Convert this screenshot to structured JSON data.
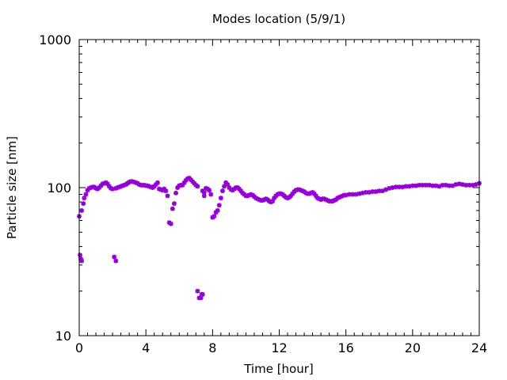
{
  "chart_data": {
    "type": "scatter",
    "title": "Modes location (5/9/1)",
    "xlabel": "Time [hour]",
    "ylabel": "Particle size [nm]",
    "xlim": [
      0,
      24
    ],
    "ylim": [
      10,
      1000
    ],
    "yscale": "log",
    "xticks": [
      0,
      4,
      8,
      12,
      16,
      20,
      24
    ],
    "xtick_labels": [
      "0",
      "4",
      "8",
      "12",
      "16",
      "20",
      "24"
    ],
    "yticks": [
      10,
      100,
      1000
    ],
    "ytick_labels": [
      "10",
      "100",
      "1000"
    ],
    "grid": false,
    "marker": "star",
    "color": "#9400D3",
    "points": [
      [
        0.0,
        64
      ],
      [
        0.05,
        35
      ],
      [
        0.1,
        33
      ],
      [
        0.15,
        32
      ],
      [
        0.15,
        70
      ],
      [
        0.25,
        78
      ],
      [
        0.3,
        85
      ],
      [
        0.4,
        90
      ],
      [
        0.5,
        96
      ],
      [
        0.6,
        99
      ],
      [
        0.7,
        100
      ],
      [
        0.8,
        101
      ],
      [
        0.9,
        101
      ],
      [
        1.0,
        99
      ],
      [
        1.1,
        98
      ],
      [
        1.2,
        100
      ],
      [
        1.3,
        103
      ],
      [
        1.4,
        106
      ],
      [
        1.5,
        107
      ],
      [
        1.6,
        108
      ],
      [
        1.7,
        106
      ],
      [
        1.8,
        102
      ],
      [
        1.9,
        99
      ],
      [
        2.0,
        98
      ],
      [
        2.1,
        34
      ],
      [
        2.2,
        32
      ],
      [
        2.2,
        99
      ],
      [
        2.3,
        100
      ],
      [
        2.4,
        101
      ],
      [
        2.5,
        102
      ],
      [
        2.6,
        103
      ],
      [
        2.7,
        104
      ],
      [
        2.8,
        105
      ],
      [
        2.9,
        107
      ],
      [
        3.0,
        109
      ],
      [
        3.1,
        110
      ],
      [
        3.2,
        110
      ],
      [
        3.3,
        109
      ],
      [
        3.4,
        108
      ],
      [
        3.5,
        107
      ],
      [
        3.6,
        105
      ],
      [
        3.7,
        104
      ],
      [
        3.8,
        104
      ],
      [
        3.9,
        104
      ],
      [
        4.0,
        103
      ],
      [
        4.1,
        103
      ],
      [
        4.2,
        102
      ],
      [
        4.3,
        101
      ],
      [
        4.4,
        100
      ],
      [
        4.5,
        102
      ],
      [
        4.6,
        105
      ],
      [
        4.7,
        108
      ],
      [
        4.8,
        98
      ],
      [
        4.9,
        97
      ],
      [
        5.0,
        96
      ],
      [
        5.1,
        98
      ],
      [
        5.2,
        95
      ],
      [
        5.3,
        88
      ],
      [
        5.4,
        58
      ],
      [
        5.5,
        57
      ],
      [
        5.6,
        72
      ],
      [
        5.7,
        78
      ],
      [
        5.8,
        92
      ],
      [
        5.9,
        100
      ],
      [
        6.0,
        103
      ],
      [
        6.1,
        104
      ],
      [
        6.2,
        104
      ],
      [
        6.3,
        108
      ],
      [
        6.4,
        112
      ],
      [
        6.5,
        115
      ],
      [
        6.6,
        116
      ],
      [
        6.7,
        113
      ],
      [
        6.8,
        110
      ],
      [
        6.9,
        107
      ],
      [
        7.0,
        104
      ],
      [
        7.1,
        102
      ],
      [
        7.1,
        20
      ],
      [
        7.2,
        18
      ],
      [
        7.3,
        18
      ],
      [
        7.35,
        19
      ],
      [
        7.4,
        19
      ],
      [
        7.4,
        95
      ],
      [
        7.5,
        93
      ],
      [
        7.5,
        88
      ],
      [
        7.6,
        99
      ],
      [
        7.7,
        98
      ],
      [
        7.8,
        96
      ],
      [
        7.9,
        90
      ],
      [
        8.0,
        63
      ],
      [
        8.1,
        64
      ],
      [
        8.2,
        68
      ],
      [
        8.3,
        70
      ],
      [
        8.4,
        76
      ],
      [
        8.5,
        85
      ],
      [
        8.6,
        95
      ],
      [
        8.7,
        102
      ],
      [
        8.8,
        108
      ],
      [
        8.9,
        105
      ],
      [
        9.0,
        100
      ],
      [
        9.1,
        97
      ],
      [
        9.2,
        96
      ],
      [
        9.3,
        98
      ],
      [
        9.4,
        100
      ],
      [
        9.5,
        100
      ],
      [
        9.6,
        98
      ],
      [
        9.7,
        95
      ],
      [
        9.8,
        92
      ],
      [
        9.9,
        90
      ],
      [
        10.0,
        88
      ],
      [
        10.1,
        88
      ],
      [
        10.2,
        89
      ],
      [
        10.3,
        90
      ],
      [
        10.4,
        89
      ],
      [
        10.5,
        87
      ],
      [
        10.6,
        85
      ],
      [
        10.7,
        84
      ],
      [
        10.8,
        83
      ],
      [
        10.9,
        82
      ],
      [
        11.0,
        82
      ],
      [
        11.1,
        83
      ],
      [
        11.2,
        84
      ],
      [
        11.3,
        83
      ],
      [
        11.4,
        81
      ],
      [
        11.5,
        80
      ],
      [
        11.6,
        81
      ],
      [
        11.7,
        85
      ],
      [
        11.8,
        88
      ],
      [
        11.9,
        90
      ],
      [
        12.0,
        91
      ],
      [
        12.1,
        91
      ],
      [
        12.2,
        90
      ],
      [
        12.3,
        88
      ],
      [
        12.4,
        86
      ],
      [
        12.5,
        85
      ],
      [
        12.6,
        86
      ],
      [
        12.7,
        88
      ],
      [
        12.8,
        91
      ],
      [
        12.9,
        94
      ],
      [
        13.0,
        96
      ],
      [
        13.1,
        97
      ],
      [
        13.2,
        97
      ],
      [
        13.3,
        96
      ],
      [
        13.4,
        95
      ],
      [
        13.5,
        94
      ],
      [
        13.6,
        92
      ],
      [
        13.7,
        91
      ],
      [
        13.8,
        91
      ],
      [
        13.9,
        92
      ],
      [
        14.0,
        93
      ],
      [
        14.1,
        91
      ],
      [
        14.2,
        88
      ],
      [
        14.3,
        85
      ],
      [
        14.4,
        84
      ],
      [
        14.5,
        83
      ],
      [
        14.6,
        84
      ],
      [
        14.7,
        84
      ],
      [
        14.8,
        83
      ],
      [
        14.9,
        82
      ],
      [
        15.0,
        81
      ],
      [
        15.1,
        81
      ],
      [
        15.2,
        81
      ],
      [
        15.3,
        82
      ],
      [
        15.4,
        83
      ],
      [
        15.5,
        85
      ],
      [
        15.6,
        86
      ],
      [
        15.7,
        87
      ],
      [
        15.8,
        88
      ],
      [
        15.9,
        89
      ],
      [
        16.0,
        89
      ],
      [
        16.2,
        90
      ],
      [
        16.4,
        90
      ],
      [
        16.6,
        90
      ],
      [
        16.8,
        91
      ],
      [
        17.0,
        92
      ],
      [
        17.2,
        93
      ],
      [
        17.4,
        93
      ],
      [
        17.6,
        94
      ],
      [
        17.8,
        94
      ],
      [
        18.0,
        95
      ],
      [
        18.2,
        95
      ],
      [
        18.4,
        97
      ],
      [
        18.6,
        99
      ],
      [
        18.8,
        100
      ],
      [
        19.0,
        101
      ],
      [
        19.2,
        101
      ],
      [
        19.4,
        101
      ],
      [
        19.6,
        102
      ],
      [
        19.8,
        102
      ],
      [
        20.0,
        103
      ],
      [
        20.2,
        103
      ],
      [
        20.4,
        104
      ],
      [
        20.6,
        104
      ],
      [
        20.8,
        104
      ],
      [
        21.0,
        104
      ],
      [
        21.2,
        103
      ],
      [
        21.4,
        103
      ],
      [
        21.6,
        102
      ],
      [
        21.8,
        104
      ],
      [
        22.0,
        104
      ],
      [
        22.2,
        103
      ],
      [
        22.4,
        103
      ],
      [
        22.6,
        105
      ],
      [
        22.8,
        106
      ],
      [
        23.0,
        105
      ],
      [
        23.2,
        104
      ],
      [
        23.4,
        104
      ],
      [
        23.6,
        104
      ],
      [
        23.8,
        105
      ],
      [
        24.0,
        107
      ]
    ]
  }
}
